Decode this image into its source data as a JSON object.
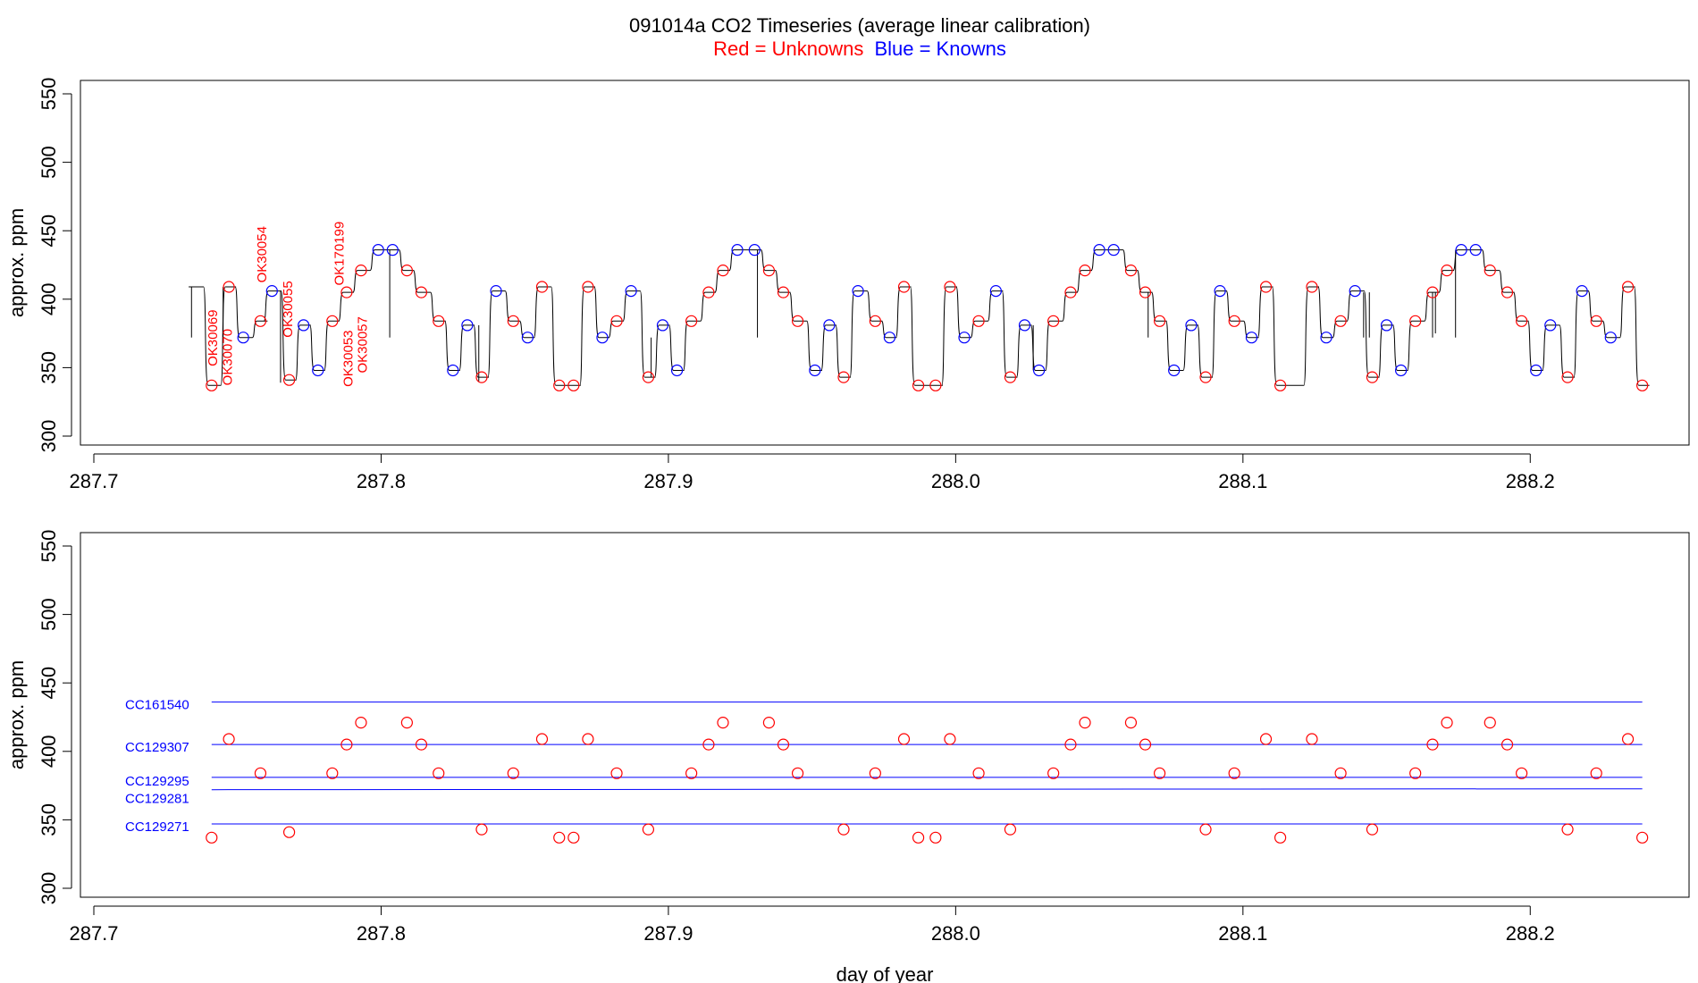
{
  "title": "091014a   CO2 Timeseries (average linear calibration)",
  "legend": {
    "red_label": "Red = Unknowns",
    "blue_label": "Blue = Knowns",
    "red_color": "#ff0000",
    "blue_color": "#0000ff"
  },
  "chart_data": [
    {
      "type": "line",
      "name": "timeseries",
      "ylabel": "approx. ppm",
      "xlabel": "",
      "xlim": [
        287.7,
        288.25
      ],
      "ylim": [
        300,
        550
      ],
      "xticks": [
        287.7,
        287.8,
        287.9,
        288.0,
        288.1,
        288.2
      ],
      "xtick_labels": [
        "287.7",
        "287.8",
        "287.9",
        "288.0",
        "288.1",
        "288.2"
      ],
      "yticks": [
        300,
        350,
        400,
        450,
        500,
        550
      ],
      "ytick_labels": [
        "300",
        "350",
        "400",
        "450",
        "500",
        "550"
      ],
      "unknowns": [
        {
          "x": 287.741,
          "y": 337
        },
        {
          "x": 287.747,
          "y": 409
        },
        {
          "x": 287.758,
          "y": 384
        },
        {
          "x": 287.768,
          "y": 341
        },
        {
          "x": 287.783,
          "y": 384
        },
        {
          "x": 287.788,
          "y": 405
        },
        {
          "x": 287.793,
          "y": 421
        },
        {
          "x": 287.809,
          "y": 421
        },
        {
          "x": 287.814,
          "y": 405
        },
        {
          "x": 287.82,
          "y": 384
        },
        {
          "x": 287.835,
          "y": 343
        },
        {
          "x": 287.846,
          "y": 384
        },
        {
          "x": 287.856,
          "y": 409
        },
        {
          "x": 287.862,
          "y": 337
        },
        {
          "x": 287.867,
          "y": 337
        },
        {
          "x": 287.872,
          "y": 409
        },
        {
          "x": 287.882,
          "y": 384
        },
        {
          "x": 287.893,
          "y": 343
        },
        {
          "x": 287.908,
          "y": 384
        },
        {
          "x": 287.914,
          "y": 405
        },
        {
          "x": 287.919,
          "y": 421
        },
        {
          "x": 287.935,
          "y": 421
        },
        {
          "x": 287.94,
          "y": 405
        },
        {
          "x": 287.945,
          "y": 384
        },
        {
          "x": 287.961,
          "y": 343
        },
        {
          "x": 287.972,
          "y": 384
        },
        {
          "x": 287.982,
          "y": 409
        },
        {
          "x": 287.987,
          "y": 337
        },
        {
          "x": 287.993,
          "y": 337
        },
        {
          "x": 287.998,
          "y": 409
        },
        {
          "x": 288.008,
          "y": 384
        },
        {
          "x": 288.019,
          "y": 343
        },
        {
          "x": 288.034,
          "y": 384
        },
        {
          "x": 288.04,
          "y": 405
        },
        {
          "x": 288.045,
          "y": 421
        },
        {
          "x": 288.061,
          "y": 421
        },
        {
          "x": 288.066,
          "y": 405
        },
        {
          "x": 288.071,
          "y": 384
        },
        {
          "x": 288.087,
          "y": 343
        },
        {
          "x": 288.097,
          "y": 384
        },
        {
          "x": 288.108,
          "y": 409
        },
        {
          "x": 288.113,
          "y": 337
        },
        {
          "x": 288.124,
          "y": 409
        },
        {
          "x": 288.134,
          "y": 384
        },
        {
          "x": 288.145,
          "y": 343
        },
        {
          "x": 288.16,
          "y": 384
        },
        {
          "x": 288.166,
          "y": 405
        },
        {
          "x": 288.171,
          "y": 421
        },
        {
          "x": 288.186,
          "y": 421
        },
        {
          "x": 288.192,
          "y": 405
        },
        {
          "x": 288.197,
          "y": 384
        },
        {
          "x": 288.213,
          "y": 343
        },
        {
          "x": 288.223,
          "y": 384
        },
        {
          "x": 288.234,
          "y": 409
        },
        {
          "x": 288.239,
          "y": 337
        }
      ],
      "knowns": [
        {
          "x": 287.752,
          "y": 372
        },
        {
          "x": 287.762,
          "y": 406
        },
        {
          "x": 287.773,
          "y": 381
        },
        {
          "x": 287.778,
          "y": 348
        },
        {
          "x": 287.799,
          "y": 436
        },
        {
          "x": 287.804,
          "y": 436
        },
        {
          "x": 287.825,
          "y": 348
        },
        {
          "x": 287.83,
          "y": 381
        },
        {
          "x": 287.84,
          "y": 406
        },
        {
          "x": 287.851,
          "y": 372
        },
        {
          "x": 287.877,
          "y": 372
        },
        {
          "x": 287.887,
          "y": 406
        },
        {
          "x": 287.898,
          "y": 381
        },
        {
          "x": 287.903,
          "y": 348
        },
        {
          "x": 287.924,
          "y": 436
        },
        {
          "x": 287.93,
          "y": 436
        },
        {
          "x": 287.951,
          "y": 348
        },
        {
          "x": 287.956,
          "y": 381
        },
        {
          "x": 287.966,
          "y": 406
        },
        {
          "x": 287.977,
          "y": 372
        },
        {
          "x": 288.003,
          "y": 372
        },
        {
          "x": 288.014,
          "y": 406
        },
        {
          "x": 288.024,
          "y": 381
        },
        {
          "x": 288.029,
          "y": 348
        },
        {
          "x": 288.05,
          "y": 436
        },
        {
          "x": 288.055,
          "y": 436
        },
        {
          "x": 288.076,
          "y": 348
        },
        {
          "x": 288.082,
          "y": 381
        },
        {
          "x": 288.092,
          "y": 406
        },
        {
          "x": 288.103,
          "y": 372
        },
        {
          "x": 288.129,
          "y": 372
        },
        {
          "x": 288.139,
          "y": 406
        },
        {
          "x": 288.15,
          "y": 381
        },
        {
          "x": 288.155,
          "y": 348
        },
        {
          "x": 288.176,
          "y": 436
        },
        {
          "x": 288.181,
          "y": 436
        },
        {
          "x": 288.202,
          "y": 348
        },
        {
          "x": 288.207,
          "y": 381
        },
        {
          "x": 288.218,
          "y": 406
        },
        {
          "x": 288.228,
          "y": 372
        }
      ],
      "annotations": [
        {
          "text": "OK30069",
          "x": 287.743,
          "y": 351
        },
        {
          "text": "OK30070",
          "x": 287.748,
          "y": 337
        },
        {
          "text": "OK30054",
          "x": 287.76,
          "y": 412
        },
        {
          "text": "OK30055",
          "x": 287.769,
          "y": 372
        },
        {
          "text": "OK170199",
          "x": 287.787,
          "y": 410
        },
        {
          "text": "OK30053",
          "x": 287.79,
          "y": 336
        },
        {
          "text": "OK30057",
          "x": 287.795,
          "y": 346
        }
      ]
    },
    {
      "type": "scatter",
      "name": "calibration",
      "ylabel": "approx. ppm",
      "xlabel": "day of year",
      "xlim": [
        287.7,
        288.25
      ],
      "ylim": [
        300,
        550
      ],
      "xticks": [
        287.7,
        287.8,
        287.9,
        288.0,
        288.1,
        288.2
      ],
      "xtick_labels": [
        "287.7",
        "287.8",
        "287.9",
        "288.0",
        "288.1",
        "288.2"
      ],
      "yticks": [
        300,
        350,
        400,
        450,
        500,
        550
      ],
      "ytick_labels": [
        "300",
        "350",
        "400",
        "450",
        "500",
        "550"
      ],
      "standards": [
        {
          "name": "CC161540",
          "y": 436
        },
        {
          "name": "CC129307",
          "y": 405
        },
        {
          "name": "CC129295",
          "y": 381
        },
        {
          "name": "CC129281",
          "y": 372
        },
        {
          "name": "CC129271",
          "y": 347
        }
      ]
    }
  ]
}
